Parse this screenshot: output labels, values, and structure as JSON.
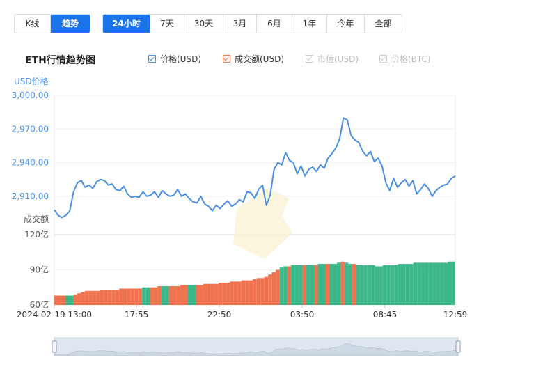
{
  "tabs_mode": [
    {
      "label": "K线",
      "active": false
    },
    {
      "label": "趋势",
      "active": true
    }
  ],
  "tabs_range": [
    {
      "label": "24小时",
      "active": true
    },
    {
      "label": "7天",
      "active": false
    },
    {
      "label": "30天",
      "active": false
    },
    {
      "label": "3月",
      "active": false
    },
    {
      "label": "6月",
      "active": false
    },
    {
      "label": "1年",
      "active": false
    },
    {
      "label": "今年",
      "active": false
    },
    {
      "label": "全部",
      "active": false
    }
  ],
  "title": "ETH行情趋势图",
  "legend": [
    {
      "label": "价格(USD)",
      "checked": true,
      "color": "#4a90e2"
    },
    {
      "label": "成交额(USD)",
      "checked": true,
      "color": "#f0734f"
    },
    {
      "label": "市值(USD)",
      "checked": false,
      "color": "#cccccc"
    },
    {
      "label": "价格(BTC)",
      "checked": false,
      "color": "#cccccc"
    }
  ],
  "colors": {
    "price": "#4a90e2",
    "volume_up": "#f0734f",
    "volume_down": "#3cb78a",
    "axis_text": "#4a90e2"
  },
  "chart_data": {
    "type": "line",
    "price": {
      "ylabel": "USD价格",
      "yticks": [
        "3,000.00",
        "2,970.00",
        "2,940.00",
        "2,910.00"
      ],
      "ylim": [
        2895,
        3000
      ],
      "values": [
        2898,
        2893,
        2891,
        2893,
        2897,
        2914,
        2922,
        2924,
        2918,
        2920,
        2917,
        2923,
        2925,
        2924,
        2920,
        2921,
        2916,
        2915,
        2919,
        2912,
        2909,
        2910,
        2909,
        2914,
        2910,
        2911,
        2914,
        2909,
        2915,
        2912,
        2910,
        2911,
        2916,
        2910,
        2912,
        2908,
        2905,
        2904,
        2910,
        2903,
        2901,
        2897,
        2902,
        2899,
        2903,
        2906,
        2901,
        2903,
        2907,
        2905,
        2914,
        2913,
        2908,
        2916,
        2920,
        2902,
        2911,
        2934,
        2940,
        2938,
        2949,
        2942,
        2940,
        2930,
        2937,
        2928,
        2934,
        2936,
        2932,
        2938,
        2935,
        2944,
        2948,
        2953,
        2961,
        2980,
        2978,
        2964,
        2960,
        2958,
        2950,
        2946,
        2950,
        2941,
        2944,
        2937,
        2922,
        2915,
        2926,
        2918,
        2922,
        2925,
        2919,
        2924,
        2912,
        2916,
        2921,
        2917,
        2910,
        2915,
        2918,
        2920,
        2921,
        2926,
        2928
      ]
    },
    "volume": {
      "ylabel": "成交额",
      "yticks": [
        "120亿",
        "90亿",
        "60亿"
      ],
      "ylim": [
        60,
        120
      ],
      "values": [
        68,
        68,
        68,
        68,
        68,
        69,
        70,
        71,
        72,
        72,
        72,
        72,
        73,
        73,
        73,
        73,
        73,
        74,
        74,
        74,
        74,
        74,
        74,
        75,
        75,
        75,
        75,
        76,
        76,
        76,
        76,
        76,
        76,
        77,
        77,
        77,
        77,
        77,
        77,
        78,
        78,
        78,
        78,
        79,
        79,
        79,
        80,
        80,
        80,
        81,
        81,
        81,
        82,
        83,
        83,
        84,
        86,
        88,
        90,
        92,
        93,
        93,
        94,
        94,
        94,
        94,
        94,
        94,
        94,
        95,
        95,
        95,
        95,
        95,
        96,
        97,
        96,
        95,
        95,
        94,
        94,
        94,
        94,
        94,
        93,
        93,
        94,
        94,
        94,
        94,
        95,
        95,
        95,
        95,
        96,
        96,
        96,
        96,
        96,
        96,
        96,
        96,
        96,
        97,
        97
      ],
      "down_indices": [
        3,
        4,
        23,
        24,
        28,
        29,
        35,
        36,
        59,
        60,
        62,
        63,
        64,
        66,
        67,
        69,
        70,
        72,
        73,
        74,
        76,
        77,
        79,
        80,
        81,
        82,
        83,
        84,
        85,
        86,
        87,
        88,
        89,
        90,
        91,
        92,
        93,
        94,
        95,
        96,
        97,
        98,
        99,
        100,
        101,
        102,
        103,
        104
      ]
    },
    "xticks": [
      "2024-02-19 13:00",
      "17:55",
      "22:50",
      "03:50",
      "08:45",
      "12:59"
    ],
    "watermark": "B"
  }
}
